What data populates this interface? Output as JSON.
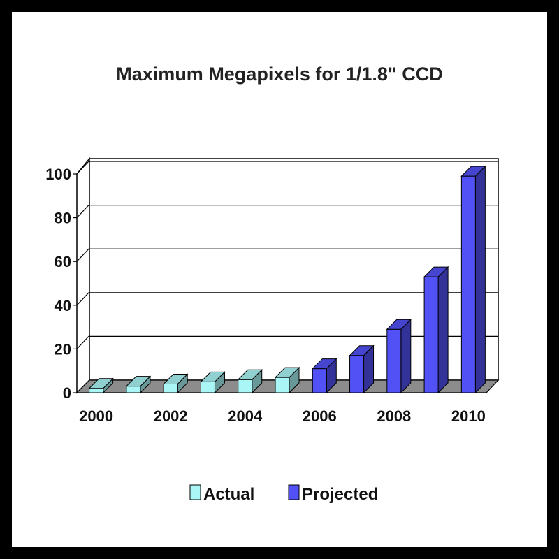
{
  "chart_data": {
    "type": "bar",
    "title": "Maximum Megapixels for 1/1.8\" CCD",
    "xlabel": "",
    "ylabel": "",
    "ylim": [
      0,
      100
    ],
    "yticks": [
      0,
      20,
      40,
      60,
      80,
      100
    ],
    "categories": [
      "2000",
      "2001",
      "2002",
      "2003",
      "2004",
      "2005",
      "2006",
      "2007",
      "2008",
      "2009",
      "2010"
    ],
    "x_tick_labels": [
      "2000",
      "2002",
      "2004",
      "2006",
      "2008",
      "2010"
    ],
    "series": [
      {
        "name": "Actual",
        "color": "#aaf5f5",
        "values": [
          2,
          3,
          4,
          5,
          6,
          7,
          null,
          null,
          null,
          null,
          null
        ]
      },
      {
        "name": "Projected",
        "color": "#5151f5",
        "values": [
          null,
          null,
          null,
          null,
          null,
          null,
          11,
          17,
          29,
          53,
          99
        ]
      }
    ],
    "legend": {
      "position": "bottom",
      "items": [
        "Actual",
        "Projected"
      ]
    },
    "grid": true,
    "style": "3d"
  }
}
